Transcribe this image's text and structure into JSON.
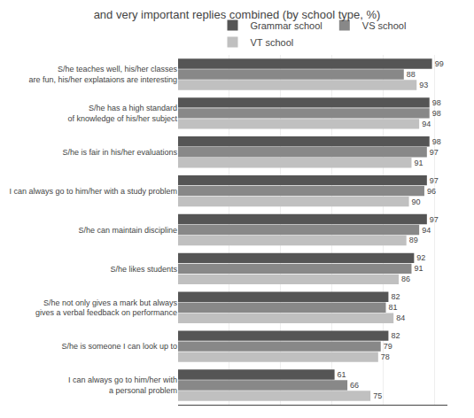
{
  "chart_data": {
    "type": "bar",
    "orientation": "horizontal",
    "title": "and very important replies combined (by school type, %)",
    "categories": [
      "S/he teaches well, his/her classes\nare fun, his/her explataions are interesting",
      "S/he has a high standard\nof knowledge of his/her subject",
      "S/he is fair in his/her evaluations",
      "I can always go to him/her with a study problem",
      "S/he can maintain discipline",
      "S/he likes students",
      "S/he not only gives a mark but always\ngives a verbal feedback on performance",
      "S/he is someone I can look up to",
      "I can always go to him/her with\na personal problem"
    ],
    "series": [
      {
        "name": "Grammar school",
        "color": "#555555",
        "values": [
          99,
          98,
          98,
          97,
          97,
          92,
          82,
          82,
          61
        ]
      },
      {
        "name": "VS school",
        "color": "#888888",
        "values": [
          88,
          98,
          97,
          96,
          94,
          91,
          81,
          79,
          66
        ]
      },
      {
        "name": "VT school",
        "color": "#c0c0c0",
        "values": [
          93,
          94,
          91,
          90,
          89,
          86,
          84,
          78,
          75
        ]
      }
    ],
    "xlim": [
      0,
      105
    ],
    "xticks": [
      20,
      40,
      60,
      80,
      100
    ],
    "grid": true,
    "tick_labels": "y",
    "data_labels": true,
    "legend": "top"
  }
}
